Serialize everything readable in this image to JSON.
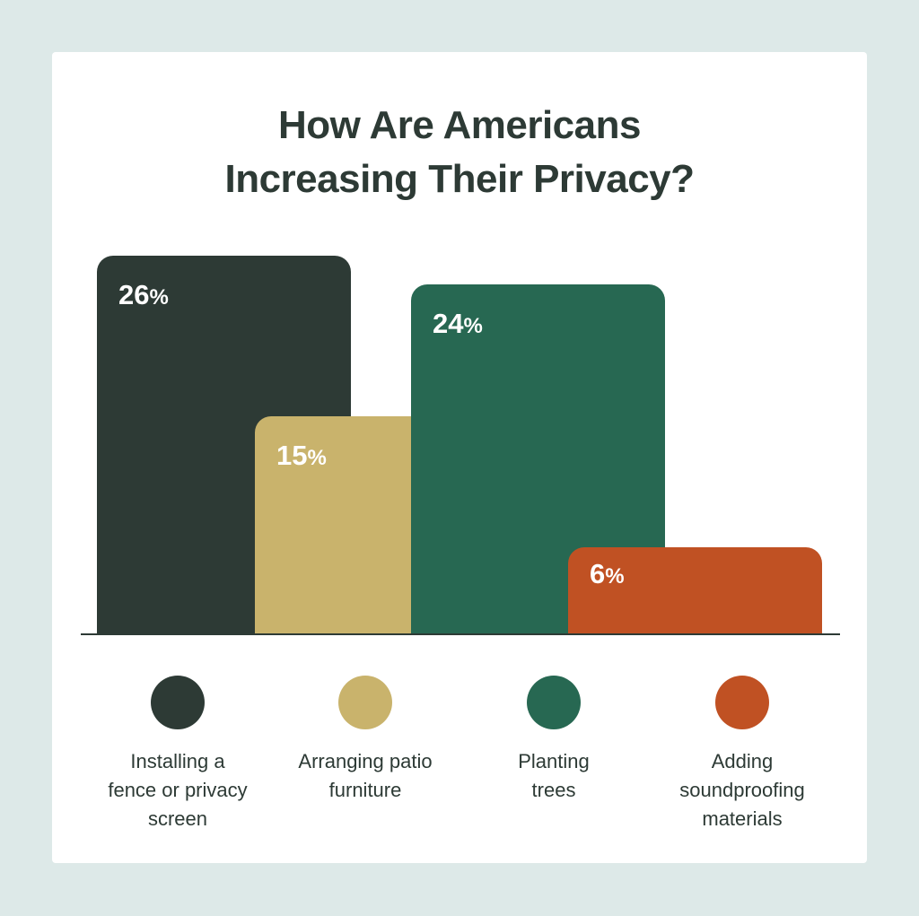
{
  "chart_data": {
    "type": "bar",
    "title": "How Are Americans Increasing Their Privacy?",
    "title_lines": [
      "How Are Americans",
      "Increasing Their Privacy?"
    ],
    "categories": [
      "Installing a fence or privacy screen",
      "Arranging patio furniture",
      "Planting trees",
      "Adding soundproofing materials"
    ],
    "values": [
      26,
      15,
      24,
      6
    ],
    "value_labels": [
      "26",
      "15",
      "24",
      "6"
    ],
    "unit": "%",
    "colors": [
      "#2d3a35",
      "#c9b36c",
      "#276852",
      "#c05123"
    ],
    "legend": [
      {
        "lines": [
          "Installing a",
          "fence or privacy",
          "screen"
        ]
      },
      {
        "lines": [
          "Arranging patio",
          "furniture"
        ]
      },
      {
        "lines": [
          "Planting",
          "trees"
        ]
      },
      {
        "lines": [
          "Adding",
          "soundproofing",
          "materials"
        ]
      }
    ],
    "legend_position": "bottom",
    "grid": false
  }
}
